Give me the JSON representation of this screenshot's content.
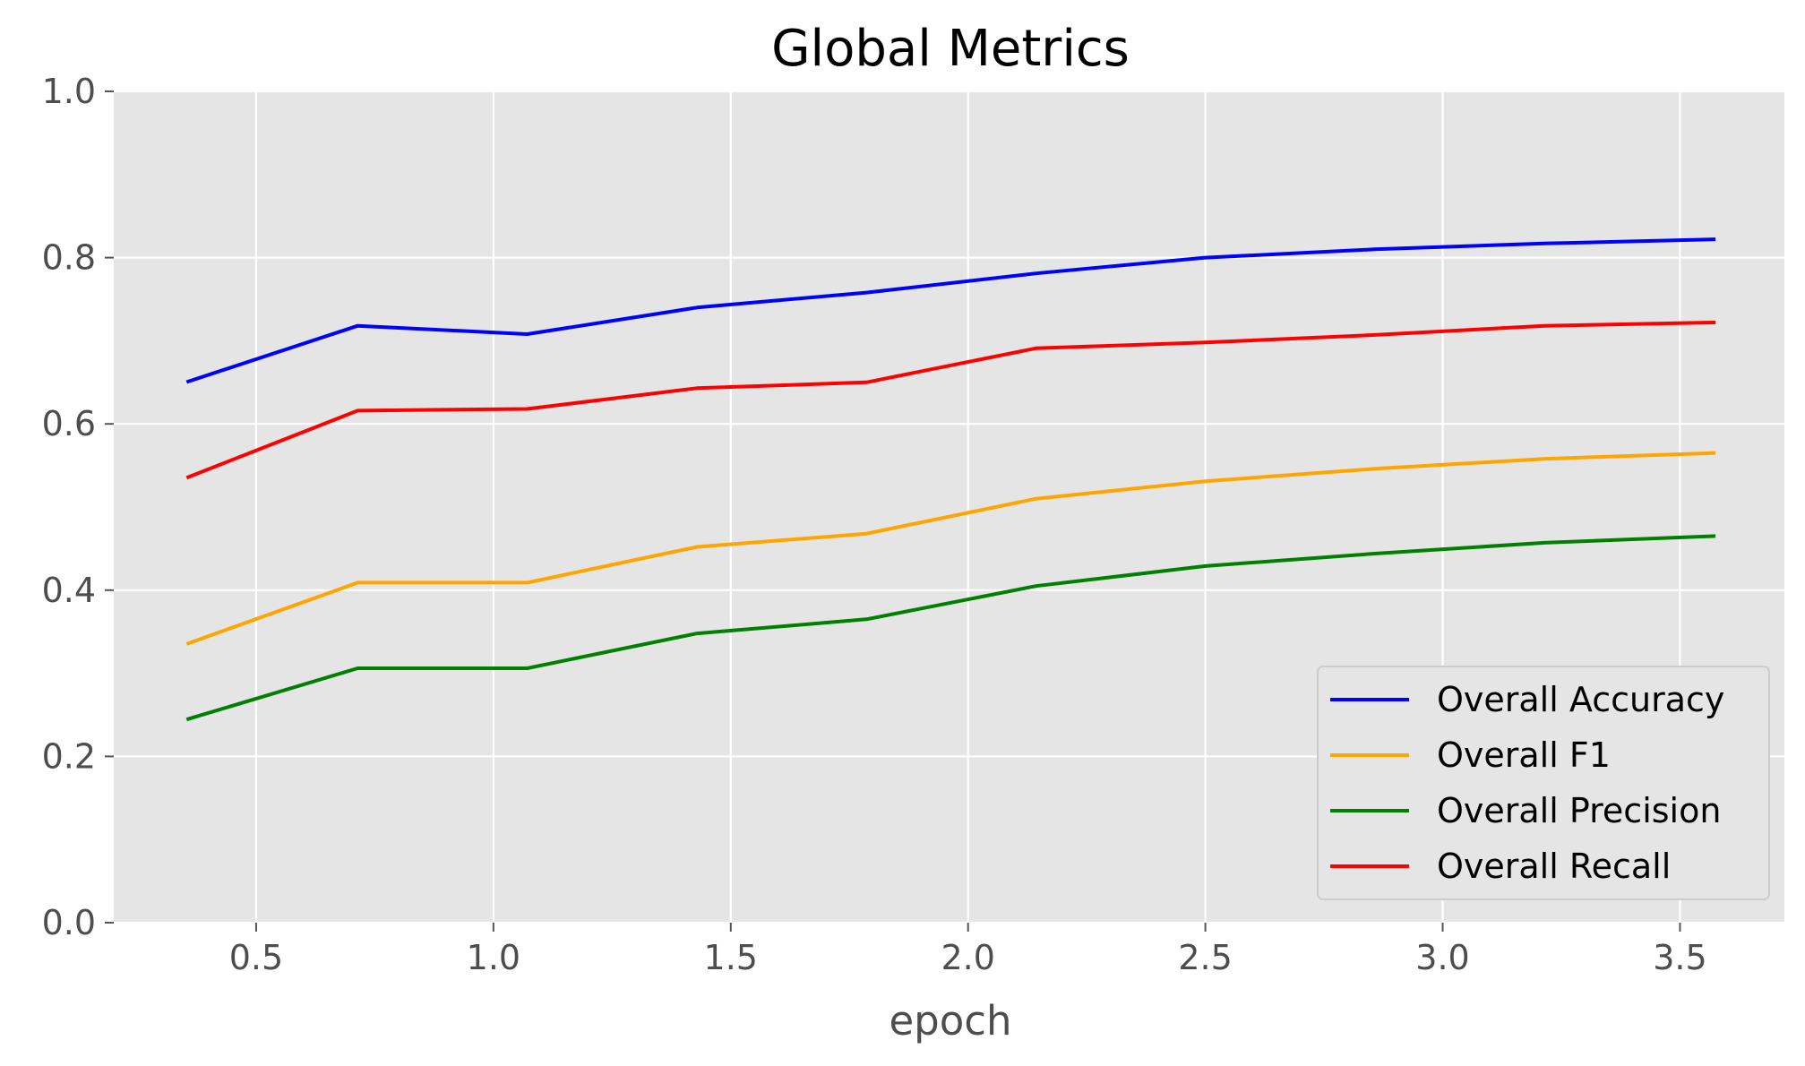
{
  "chart_data": {
    "type": "line",
    "title": "Global Metrics",
    "xlabel": "epoch",
    "ylabel": "",
    "xlim": [
      0.2,
      3.72
    ],
    "ylim": [
      0.0,
      1.0
    ],
    "x_ticks": [
      0.5,
      1.0,
      1.5,
      2.0,
      2.5,
      3.0,
      3.5
    ],
    "x_tick_labels": [
      "0.5",
      "1.0",
      "1.5",
      "2.0",
      "2.5",
      "3.0",
      "3.5"
    ],
    "y_ticks": [
      0.0,
      0.2,
      0.4,
      0.6,
      0.8,
      1.0
    ],
    "y_tick_labels": [
      "0.0",
      "0.2",
      "0.4",
      "0.6",
      "0.8",
      "1.0"
    ],
    "grid": true,
    "legend_position": "lower-right",
    "x": [
      0.357,
      0.714,
      1.071,
      1.429,
      1.786,
      2.143,
      2.5,
      2.857,
      3.214,
      3.571
    ],
    "series": [
      {
        "name": "Overall Accuracy",
        "color": "#0000ff",
        "values": [
          0.651,
          0.718,
          0.708,
          0.74,
          0.758,
          0.781,
          0.8,
          0.81,
          0.817,
          0.822
        ]
      },
      {
        "name": "Overall F1",
        "color": "#ffa500",
        "values": [
          0.336,
          0.409,
          0.409,
          0.452,
          0.468,
          0.51,
          0.531,
          0.546,
          0.558,
          0.565
        ]
      },
      {
        "name": "Overall Precision",
        "color": "#008000",
        "values": [
          0.245,
          0.306,
          0.306,
          0.348,
          0.365,
          0.405,
          0.429,
          0.444,
          0.457,
          0.465
        ]
      },
      {
        "name": "Overall Recall",
        "color": "#ff0000",
        "values": [
          0.536,
          0.616,
          0.618,
          0.643,
          0.65,
          0.691,
          0.698,
          0.707,
          0.718,
          0.722
        ]
      }
    ]
  }
}
